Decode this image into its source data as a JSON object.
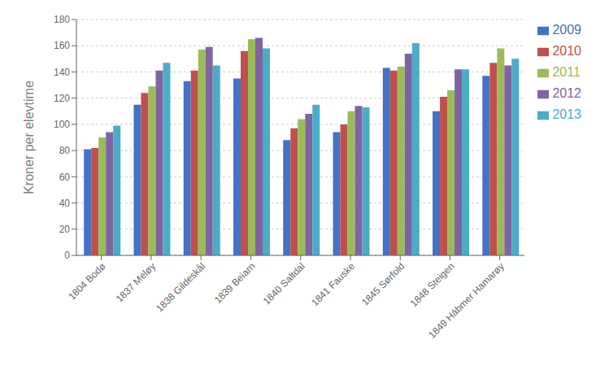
{
  "chart_data": {
    "type": "bar",
    "ylabel": "Kroner per elevtime",
    "categories": [
      "1804 Bodø",
      "1837 Meløy",
      "1838 Gildeskål",
      "1839 Beiarn",
      "1840 Saltdal",
      "1841 Fauske",
      "1845 Sørfold",
      "1848 Steigen",
      "1849 Hábmer Hamarøy"
    ],
    "series": [
      {
        "name": "2009",
        "color": "#4472C4",
        "values": [
          81,
          115,
          133,
          135,
          88,
          94,
          143,
          110,
          137
        ]
      },
      {
        "name": "2010",
        "color": "#C0504D",
        "values": [
          82,
          124,
          141,
          156,
          97,
          100,
          141,
          121,
          147
        ]
      },
      {
        "name": "2011",
        "color": "#9BBB59",
        "values": [
          90,
          129,
          157,
          165,
          104,
          110,
          144,
          126,
          158
        ]
      },
      {
        "name": "2012",
        "color": "#8064A2",
        "values": [
          94,
          141,
          159,
          166,
          108,
          114,
          154,
          142,
          145
        ]
      },
      {
        "name": "2013",
        "color": "#4BACC6",
        "values": [
          99,
          147,
          145,
          158,
          115,
          113,
          162,
          142,
          150
        ]
      }
    ],
    "ylim": [
      0,
      180
    ],
    "yticks": [
      0,
      20,
      40,
      60,
      80,
      100,
      120,
      140,
      160,
      180
    ],
    "grid": true,
    "legend": "right"
  }
}
